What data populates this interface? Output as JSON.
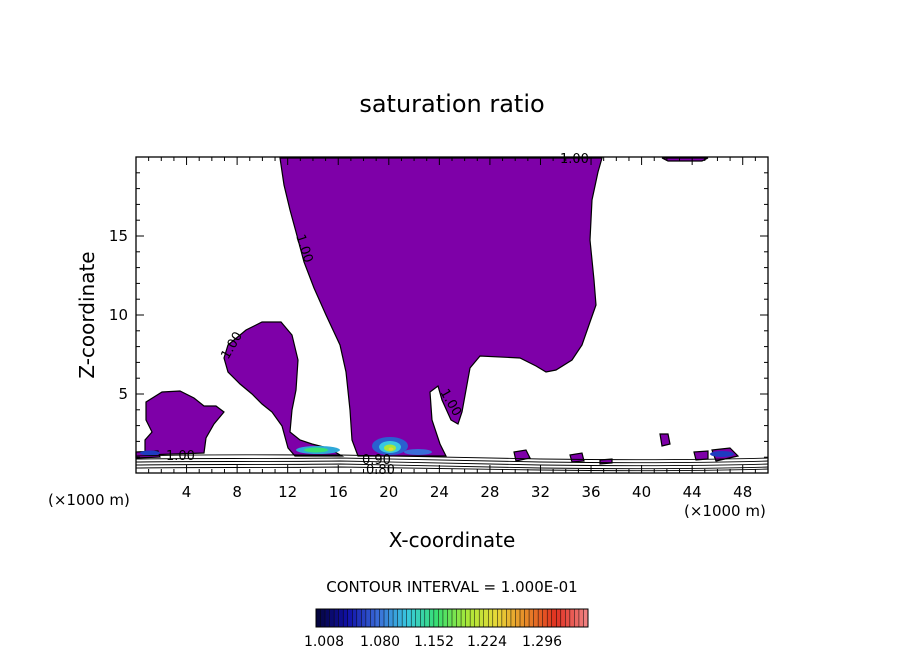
{
  "chart_data": {
    "type": "contour",
    "title": "saturation ratio",
    "xlabel": "X-coordinate",
    "ylabel": "Z-coordinate",
    "x_unit_left": "(×1000 m)",
    "x_unit_right": "(×1000 m)",
    "xlim": [
      0,
      50
    ],
    "ylim": [
      0,
      20
    ],
    "x_ticks": [
      4,
      8,
      12,
      16,
      20,
      24,
      28,
      32,
      36,
      40,
      44,
      48
    ],
    "y_ticks": [
      5,
      10,
      15
    ],
    "contour_labels": [
      "1.00",
      "1.00",
      "1.00",
      "1.00",
      "1.00",
      "0.90",
      "0.80"
    ],
    "contour_interval_text": "CONTOUR INTERVAL = 1.000E-01",
    "colorbar_ticks": [
      "1.008",
      "1.080",
      "1.152",
      "1.224",
      "1.296"
    ],
    "fill_color": "#7e00a8",
    "colorbar_colors": [
      "#050540",
      "#1010a8",
      "#3a6cd8",
      "#38c8e0",
      "#38e070",
      "#a8e838",
      "#e8d838",
      "#e88828",
      "#e03020",
      "#f08080"
    ]
  }
}
